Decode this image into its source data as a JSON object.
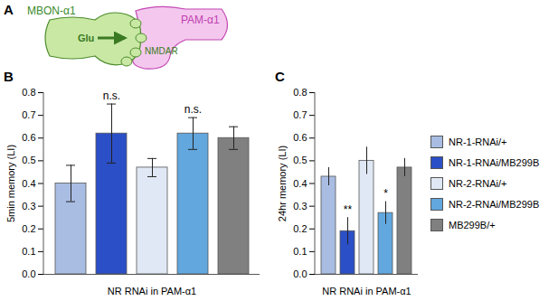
{
  "panel_a": {
    "label": "A",
    "texts": {
      "left_cell": "MBON-α1",
      "right_cell": "PAM-α1",
      "transmitter": "Glu",
      "receptor": "NMDAR"
    }
  },
  "chart_data": [
    {
      "type": "bar",
      "title": "B",
      "categories": [
        "NR-1-RNAi/+",
        "NR-1-RNAi/MB299B",
        "NR-2-RNAi/+",
        "NR-2-RNAi/MB299B",
        "MB299B/+"
      ],
      "values": [
        0.4,
        0.62,
        0.47,
        0.62,
        0.6
      ],
      "errors": [
        0.08,
        0.13,
        0.04,
        0.07,
        0.05
      ],
      "annotations": [
        null,
        "n.s.",
        null,
        "n.s.",
        null
      ],
      "colors": [
        "#a9bde3",
        "#2b4fc6",
        "#dfe8f4",
        "#62a7de",
        "#808080"
      ],
      "xlabel": "NR RNAi in PAM-α1",
      "ylabel": "5min memory (LI)",
      "ylim": [
        0,
        0.8
      ],
      "yticks": [
        0,
        0.1,
        0.2,
        0.3,
        0.4,
        0.5,
        0.6,
        0.7,
        0.8
      ],
      "tick_labels": "y"
    },
    {
      "type": "bar",
      "title": "C",
      "categories": [
        "NR-1-RNAi/+",
        "NR-1-RNAi/MB299B",
        "NR-2-RNAi/+",
        "NR-2-RNAi/MB299B",
        "MB299B/+"
      ],
      "values": [
        0.43,
        0.19,
        0.5,
        0.27,
        0.47
      ],
      "errors": [
        0.04,
        0.06,
        0.06,
        0.05,
        0.04
      ],
      "annotations": [
        null,
        "**",
        null,
        "*",
        null
      ],
      "colors": [
        "#a9bde3",
        "#2b4fc6",
        "#dfe8f4",
        "#62a7de",
        "#808080"
      ],
      "xlabel": "NR RNAi in PAM-α1",
      "ylabel": "24hr memory (LI)",
      "ylim": [
        0,
        0.8
      ],
      "yticks": [
        0,
        0.1,
        0.2,
        0.3,
        0.4,
        0.5,
        0.6,
        0.7,
        0.8
      ],
      "legend": "right",
      "tick_labels": "y"
    }
  ]
}
